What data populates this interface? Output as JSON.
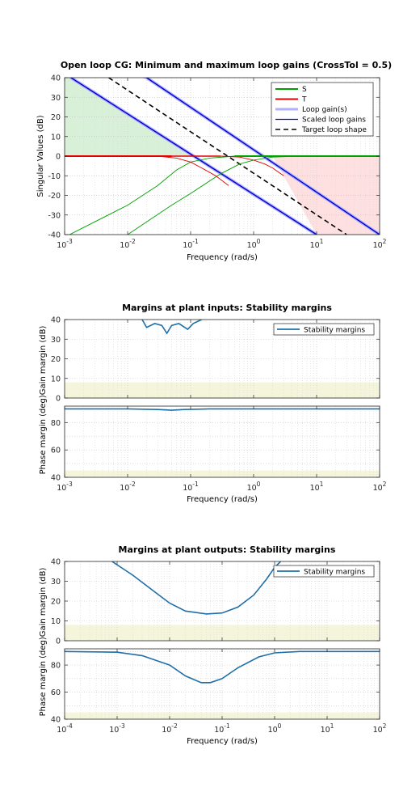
{
  "colors": {
    "S": "#00a000",
    "T": "#e00000",
    "loop_gain": "#b0b0ff",
    "scaled": "#0000c8",
    "target": "#000000",
    "green_fill": "#d8f0d8",
    "red_fill": "#ffe0e0",
    "yellow_band": "#f5f5dc",
    "margin_line": "#1f6fa8"
  },
  "chart_data": [
    {
      "type": "line",
      "title": "Open loop CG: Minimum and maximum loop gains (CrossTol = 0.5)",
      "xlabel": "Frequency (rad/s)",
      "ylabel": "Singular Values (dB)",
      "xscale": "log",
      "xlim": [
        0.001,
        100
      ],
      "ylim": [
        -40,
        40
      ],
      "yticks": [
        "40",
        "30",
        "20",
        "10",
        "0",
        "-10",
        "-20",
        "-30",
        "-40"
      ],
      "xticks": [
        {
          "base": "10",
          "exp": "-3"
        },
        {
          "base": "10",
          "exp": "-2"
        },
        {
          "base": "10",
          "exp": "-1"
        },
        {
          "base": "10",
          "exp": "0"
        },
        {
          "base": "10",
          "exp": "1"
        },
        {
          "base": "10",
          "exp": "2"
        }
      ],
      "legend": [
        "S",
        "T",
        "Loop gain(s)",
        "Scaled loop gains",
        "Target loop shape"
      ],
      "legend_position": "top-right",
      "series": [
        {
          "name": "S",
          "points": [
            [
              0.001,
              -44
            ],
            [
              0.0012,
              -40
            ],
            [
              0.01,
              -25
            ],
            [
              0.03,
              -15
            ],
            [
              0.06,
              -7
            ],
            [
              0.1,
              -3
            ],
            [
              0.2,
              -1
            ],
            [
              0.5,
              0
            ],
            [
              100,
              0
            ]
          ]
        },
        {
          "name": "S",
          "points": [
            [
              0.01,
              -40
            ],
            [
              0.05,
              -25
            ],
            [
              0.1,
              -19
            ],
            [
              0.3,
              -9
            ],
            [
              0.6,
              -4
            ],
            [
              1,
              -2
            ],
            [
              2,
              -0.5
            ],
            [
              5,
              0
            ],
            [
              100,
              0
            ]
          ]
        },
        {
          "name": "T",
          "points": [
            [
              0.001,
              0
            ],
            [
              0.03,
              0
            ],
            [
              0.06,
              -1
            ],
            [
              0.1,
              -3
            ],
            [
              0.15,
              -6
            ],
            [
              0.25,
              -10
            ],
            [
              0.4,
              -15
            ]
          ]
        },
        {
          "name": "T",
          "points": [
            [
              0.001,
              0
            ],
            [
              0.3,
              0
            ],
            [
              0.6,
              -0.5
            ],
            [
              1,
              -2
            ],
            [
              1.5,
              -4
            ],
            [
              2,
              -6
            ],
            [
              3,
              -10
            ]
          ]
        },
        {
          "name": "Loop gain(s)",
          "points": [
            [
              0.001,
              44
            ],
            [
              0.00126,
              40
            ],
            [
              10,
              -40
            ]
          ]
        },
        {
          "name": "Loop gain(s)",
          "points": [
            [
              0.001,
              56
            ],
            [
              0.02,
              40
            ],
            [
              100,
              -40
            ]
          ]
        },
        {
          "name": "Scaled loop gains",
          "points": [
            [
              0.00126,
              40
            ],
            [
              10,
              -40
            ]
          ]
        },
        {
          "name": "Scaled loop gains",
          "points": [
            [
              0.02,
              40
            ],
            [
              100,
              -40
            ]
          ]
        },
        {
          "name": "Target loop shape",
          "points": [
            [
              0.005,
              40
            ],
            [
              30,
              -40
            ]
          ]
        }
      ],
      "regions": [
        {
          "name": "S",
          "points": [
            [
              0.001,
              -40
            ],
            [
              0.001,
              44
            ],
            [
              0.00126,
              40
            ],
            [
              0.1,
              0
            ],
            [
              0.1,
              0
            ],
            [
              0.001,
              0
            ]
          ]
        },
        {
          "name": "T",
          "points": [
            [
              2,
              0
            ],
            [
              100,
              0
            ],
            [
              100,
              -40
            ],
            [
              10,
              -40
            ]
          ]
        }
      ]
    },
    {
      "type": "line",
      "title": "Margins at plant inputs: Stability margins",
      "xlabel": "Frequency  (rad/s)",
      "ylabel_top": "Gain margin (dB)",
      "ylabel_bottom": "Phase margin (deg)",
      "xscale": "log",
      "xlim": [
        0.001,
        100
      ],
      "gain_ylim": [
        0,
        40
      ],
      "phase_ylim": [
        40,
        92
      ],
      "gain_yticks": [
        "40",
        "30",
        "20",
        "10",
        "0"
      ],
      "phase_yticks": [
        "80",
        "60",
        "40"
      ],
      "xticks": [
        {
          "base": "10",
          "exp": "-3"
        },
        {
          "base": "10",
          "exp": "-2"
        },
        {
          "base": "10",
          "exp": "-1"
        },
        {
          "base": "10",
          "exp": "0"
        },
        {
          "base": "10",
          "exp": "1"
        },
        {
          "base": "10",
          "exp": "2"
        }
      ],
      "legend": [
        "Stability margins"
      ],
      "legend_position": "top-right",
      "gain_series": [
        [
          0.017,
          40
        ],
        [
          0.02,
          36
        ],
        [
          0.027,
          38
        ],
        [
          0.035,
          37
        ],
        [
          0.042,
          33
        ],
        [
          0.05,
          37
        ],
        [
          0.065,
          38
        ],
        [
          0.09,
          35
        ],
        [
          0.11,
          38
        ],
        [
          0.15,
          40
        ]
      ],
      "phase_series": [
        [
          0.001,
          90
        ],
        [
          0.01,
          90
        ],
        [
          0.03,
          89.5
        ],
        [
          0.05,
          89
        ],
        [
          0.08,
          89.5
        ],
        [
          0.2,
          90
        ],
        [
          100,
          90
        ]
      ],
      "gain_band": [
        0,
        8
      ],
      "phase_band": [
        40,
        45
      ]
    },
    {
      "type": "line",
      "title": "Margins at plant outputs: Stability margins",
      "xlabel": "Frequency  (rad/s)",
      "ylabel_top": "Gain margin (dB)",
      "ylabel_bottom": "Phase margin (deg)",
      "xscale": "log",
      "xlim": [
        0.0001,
        100
      ],
      "gain_ylim": [
        0,
        40
      ],
      "phase_ylim": [
        40,
        92
      ],
      "gain_yticks": [
        "40",
        "30",
        "20",
        "10",
        "0"
      ],
      "phase_yticks": [
        "80",
        "60",
        "40"
      ],
      "xticks": [
        {
          "base": "10",
          "exp": "-4"
        },
        {
          "base": "10",
          "exp": "-3"
        },
        {
          "base": "10",
          "exp": "-2"
        },
        {
          "base": "10",
          "exp": "-1"
        },
        {
          "base": "10",
          "exp": "0"
        },
        {
          "base": "10",
          "exp": "1"
        },
        {
          "base": "10",
          "exp": "2"
        }
      ],
      "legend": [
        "Stability margins"
      ],
      "legend_position": "top-right",
      "gain_series": [
        [
          0.0008,
          40
        ],
        [
          0.002,
          33
        ],
        [
          0.005,
          25
        ],
        [
          0.01,
          19
        ],
        [
          0.02,
          15
        ],
        [
          0.05,
          13.5
        ],
        [
          0.1,
          14
        ],
        [
          0.2,
          17
        ],
        [
          0.4,
          23
        ],
        [
          0.7,
          31
        ],
        [
          1,
          37
        ],
        [
          1.3,
          40
        ]
      ],
      "phase_series": [
        [
          0.0001,
          90
        ],
        [
          0.001,
          89.5
        ],
        [
          0.003,
          87
        ],
        [
          0.01,
          80
        ],
        [
          0.02,
          72
        ],
        [
          0.04,
          67
        ],
        [
          0.06,
          67
        ],
        [
          0.1,
          70
        ],
        [
          0.2,
          78
        ],
        [
          0.5,
          86
        ],
        [
          1,
          89
        ],
        [
          3,
          90
        ],
        [
          100,
          90
        ]
      ],
      "gain_band": [
        0,
        8
      ],
      "phase_band": [
        40,
        45
      ]
    }
  ]
}
